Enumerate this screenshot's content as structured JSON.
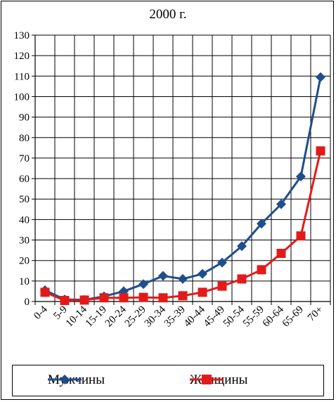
{
  "chart_data": {
    "type": "line",
    "title": "2000 г.",
    "categories": [
      "0-4",
      "5-9",
      "10-14",
      "15-19",
      "20-24",
      "25-29",
      "30-34",
      "35-39",
      "40-44",
      "45-49",
      "50-54",
      "55-59",
      "60-64",
      "65-69",
      "70+"
    ],
    "ylim": [
      0,
      130
    ],
    "yticks": [
      0,
      10,
      20,
      30,
      40,
      50,
      60,
      70,
      80,
      90,
      100,
      110,
      120,
      130
    ],
    "grid": true,
    "legend_position": "bottom",
    "series": [
      {
        "name": "Мужчины",
        "color": "#1f4e8c",
        "marker": "diamond",
        "values": [
          5.5,
          1,
          0.8,
          2.5,
          5,
          8.5,
          12.5,
          11,
          13.5,
          19,
          27,
          38,
          47.5,
          61,
          109.5
        ]
      },
      {
        "name": "Женщины",
        "color": "#e31a1a",
        "marker": "square",
        "values": [
          4.5,
          0.5,
          0.7,
          1.8,
          1.8,
          2,
          1.8,
          2.8,
          4.5,
          7.5,
          11,
          15.5,
          23.5,
          32,
          73.5
        ]
      }
    ]
  }
}
